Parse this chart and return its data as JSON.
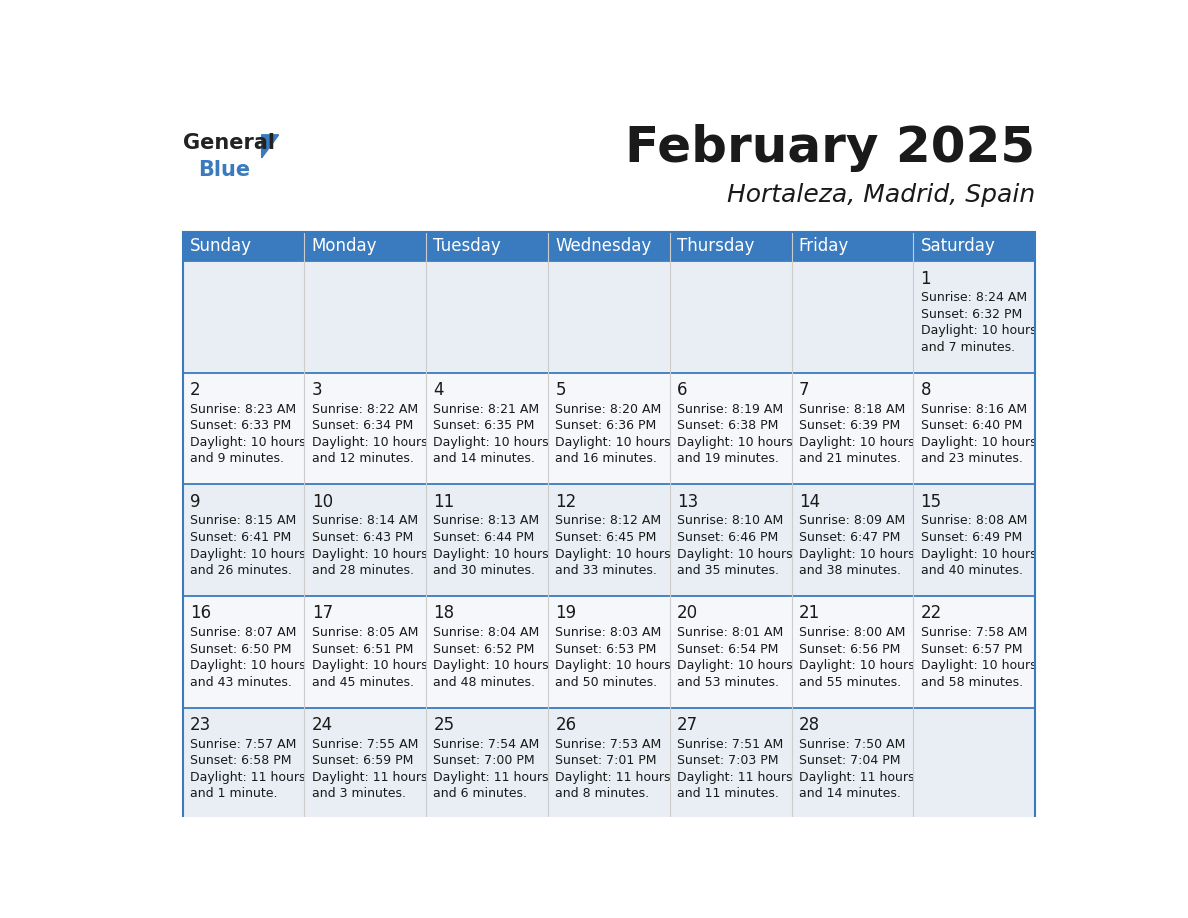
{
  "title": "February 2025",
  "subtitle": "Hortaleza, Madrid, Spain",
  "header_color": "#3a7bbf",
  "header_text_color": "#ffffff",
  "cell_bg_odd": "#e8eef4",
  "cell_bg_even": "#f5f7fa",
  "border_color": "#3a7bbf",
  "row_sep_color": "#3a7bbf",
  "col_sep_color": "#cccccc",
  "text_color": "#1a1a1a",
  "days_of_week": [
    "Sunday",
    "Monday",
    "Tuesday",
    "Wednesday",
    "Thursday",
    "Friday",
    "Saturday"
  ],
  "calendar_data": [
    [
      null,
      null,
      null,
      null,
      null,
      null,
      {
        "day": "1",
        "sunrise": "8:24 AM",
        "sunset": "6:32 PM",
        "daylight1": "10 hours",
        "daylight2": "and 7 minutes."
      }
    ],
    [
      {
        "day": "2",
        "sunrise": "8:23 AM",
        "sunset": "6:33 PM",
        "daylight1": "10 hours",
        "daylight2": "and 9 minutes."
      },
      {
        "day": "3",
        "sunrise": "8:22 AM",
        "sunset": "6:34 PM",
        "daylight1": "10 hours",
        "daylight2": "and 12 minutes."
      },
      {
        "day": "4",
        "sunrise": "8:21 AM",
        "sunset": "6:35 PM",
        "daylight1": "10 hours",
        "daylight2": "and 14 minutes."
      },
      {
        "day": "5",
        "sunrise": "8:20 AM",
        "sunset": "6:36 PM",
        "daylight1": "10 hours",
        "daylight2": "and 16 minutes."
      },
      {
        "day": "6",
        "sunrise": "8:19 AM",
        "sunset": "6:38 PM",
        "daylight1": "10 hours",
        "daylight2": "and 19 minutes."
      },
      {
        "day": "7",
        "sunrise": "8:18 AM",
        "sunset": "6:39 PM",
        "daylight1": "10 hours",
        "daylight2": "and 21 minutes."
      },
      {
        "day": "8",
        "sunrise": "8:16 AM",
        "sunset": "6:40 PM",
        "daylight1": "10 hours",
        "daylight2": "and 23 minutes."
      }
    ],
    [
      {
        "day": "9",
        "sunrise": "8:15 AM",
        "sunset": "6:41 PM",
        "daylight1": "10 hours",
        "daylight2": "and 26 minutes."
      },
      {
        "day": "10",
        "sunrise": "8:14 AM",
        "sunset": "6:43 PM",
        "daylight1": "10 hours",
        "daylight2": "and 28 minutes."
      },
      {
        "day": "11",
        "sunrise": "8:13 AM",
        "sunset": "6:44 PM",
        "daylight1": "10 hours",
        "daylight2": "and 30 minutes."
      },
      {
        "day": "12",
        "sunrise": "8:12 AM",
        "sunset": "6:45 PM",
        "daylight1": "10 hours",
        "daylight2": "and 33 minutes."
      },
      {
        "day": "13",
        "sunrise": "8:10 AM",
        "sunset": "6:46 PM",
        "daylight1": "10 hours",
        "daylight2": "and 35 minutes."
      },
      {
        "day": "14",
        "sunrise": "8:09 AM",
        "sunset": "6:47 PM",
        "daylight1": "10 hours",
        "daylight2": "and 38 minutes."
      },
      {
        "day": "15",
        "sunrise": "8:08 AM",
        "sunset": "6:49 PM",
        "daylight1": "10 hours",
        "daylight2": "and 40 minutes."
      }
    ],
    [
      {
        "day": "16",
        "sunrise": "8:07 AM",
        "sunset": "6:50 PM",
        "daylight1": "10 hours",
        "daylight2": "and 43 minutes."
      },
      {
        "day": "17",
        "sunrise": "8:05 AM",
        "sunset": "6:51 PM",
        "daylight1": "10 hours",
        "daylight2": "and 45 minutes."
      },
      {
        "day": "18",
        "sunrise": "8:04 AM",
        "sunset": "6:52 PM",
        "daylight1": "10 hours",
        "daylight2": "and 48 minutes."
      },
      {
        "day": "19",
        "sunrise": "8:03 AM",
        "sunset": "6:53 PM",
        "daylight1": "10 hours",
        "daylight2": "and 50 minutes."
      },
      {
        "day": "20",
        "sunrise": "8:01 AM",
        "sunset": "6:54 PM",
        "daylight1": "10 hours",
        "daylight2": "and 53 minutes."
      },
      {
        "day": "21",
        "sunrise": "8:00 AM",
        "sunset": "6:56 PM",
        "daylight1": "10 hours",
        "daylight2": "and 55 minutes."
      },
      {
        "day": "22",
        "sunrise": "7:58 AM",
        "sunset": "6:57 PM",
        "daylight1": "10 hours",
        "daylight2": "and 58 minutes."
      }
    ],
    [
      {
        "day": "23",
        "sunrise": "7:57 AM",
        "sunset": "6:58 PM",
        "daylight1": "11 hours",
        "daylight2": "and 1 minute."
      },
      {
        "day": "24",
        "sunrise": "7:55 AM",
        "sunset": "6:59 PM",
        "daylight1": "11 hours",
        "daylight2": "and 3 minutes."
      },
      {
        "day": "25",
        "sunrise": "7:54 AM",
        "sunset": "7:00 PM",
        "daylight1": "11 hours",
        "daylight2": "and 6 minutes."
      },
      {
        "day": "26",
        "sunrise": "7:53 AM",
        "sunset": "7:01 PM",
        "daylight1": "11 hours",
        "daylight2": "and 8 minutes."
      },
      {
        "day": "27",
        "sunrise": "7:51 AM",
        "sunset": "7:03 PM",
        "daylight1": "11 hours",
        "daylight2": "and 11 minutes."
      },
      {
        "day": "28",
        "sunrise": "7:50 AM",
        "sunset": "7:04 PM",
        "daylight1": "11 hours",
        "daylight2": "and 14 minutes."
      },
      null
    ]
  ],
  "logo_general_color": "#222222",
  "logo_blue_color": "#3a7bbf",
  "logo_triangle_color": "#3a7bbf",
  "title_fontsize": 36,
  "subtitle_fontsize": 18,
  "header_fontsize": 12,
  "day_num_fontsize": 12,
  "cell_text_fontsize": 9
}
